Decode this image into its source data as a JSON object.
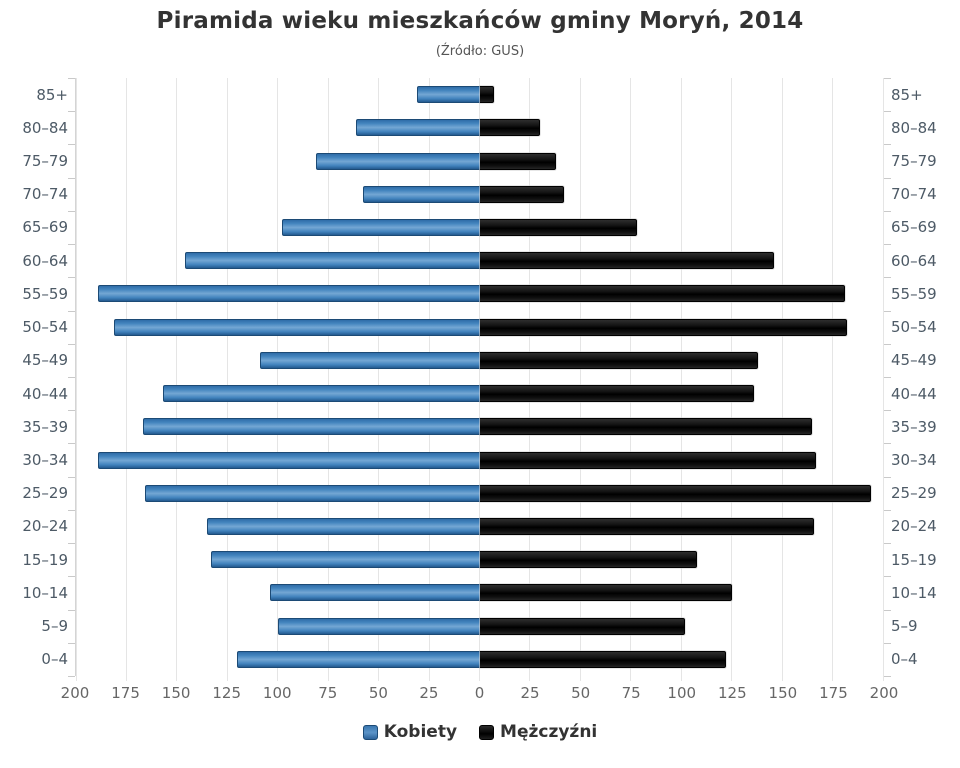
{
  "title": "Piramida wieku mieszkańców gminy Moryń, 2014",
  "subtitle": "(Źródło: GUS)",
  "legend": {
    "female_label": "Kobiety",
    "male_label": "Mężczyźni"
  },
  "colors": {
    "female_bar": "#4283bd",
    "male_bar": "#111111",
    "title_text": "#333333",
    "axis_label_text": "#4d5a66",
    "tick_label_text": "#666666",
    "gridline": "#e5e5e5"
  },
  "chart_data": {
    "type": "bar",
    "variant": "population-pyramid",
    "title": "Piramida wieku mieszkańców gminy Moryń, 2014",
    "subtitle": "(Źródło: GUS)",
    "categories": [
      "85+",
      "80–84",
      "75–79",
      "70–74",
      "65–69",
      "60–64",
      "55–59",
      "50–54",
      "45–49",
      "40–44",
      "35–39",
      "30–34",
      "25–29",
      "20–24",
      "15–19",
      "10–14",
      "5–9",
      "0–4"
    ],
    "series": [
      {
        "name": "Kobiety",
        "side": "left",
        "color": "#4283bd",
        "values": [
          31,
          61,
          81,
          58,
          98,
          146,
          189,
          181,
          109,
          157,
          167,
          189,
          166,
          135,
          133,
          104,
          100,
          120
        ]
      },
      {
        "name": "Mężczyźni",
        "side": "right",
        "color": "#111111",
        "values": [
          7,
          30,
          38,
          42,
          78,
          146,
          181,
          182,
          138,
          136,
          165,
          167,
          194,
          166,
          108,
          125,
          102,
          122
        ]
      }
    ],
    "x_tick_labels": [
      "200",
      "175",
      "150",
      "125",
      "100",
      "75",
      "50",
      "25",
      "0",
      "25",
      "50",
      "75",
      "100",
      "125",
      "150",
      "175",
      "200"
    ],
    "xlim_each_side": [
      0,
      200
    ],
    "x_tick_step": 25,
    "grid": true,
    "legend_position": "bottom",
    "xlabel": "",
    "ylabel": ""
  }
}
